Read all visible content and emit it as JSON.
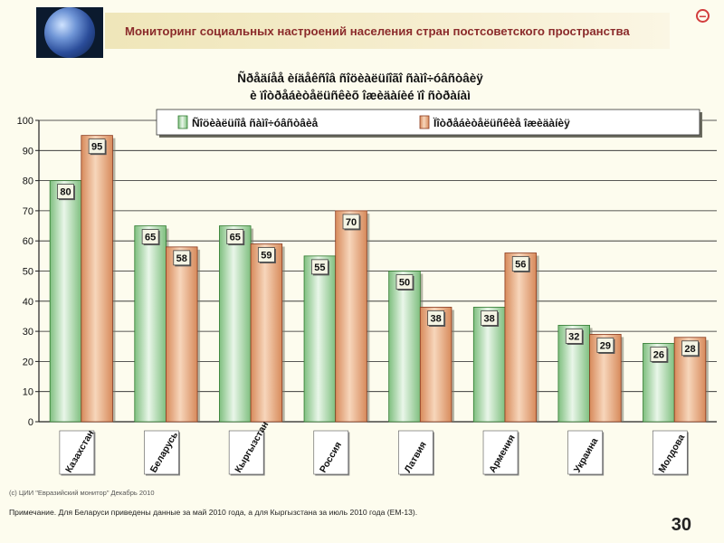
{
  "slide": {
    "title": "Мониторинг социальных настроений населения стран постсоветского пространства",
    "footnote": "Примечание. Для Беларуси приведены данные за май 2010 года, а для Кыргызстана за июль 2010 года (ЕМ-13).",
    "page_number": "30",
    "source_note": "(c) ЦИИ \"Евразийский монитор\" Декабрь 2010"
  },
  "icons": {
    "logo": "globe-icon",
    "corner": "minus-circle-icon"
  },
  "colors": {
    "series1_fill": "#c8e6c8",
    "series1_edge": "#2f7a2f",
    "series2_fill": "#f0b98e",
    "series2_edge": "#8b3a1f",
    "title": "#8b2b2b"
  },
  "chart_data": {
    "type": "bar",
    "title_lines": [
      "Ñðåäíåå èíäåêñîâ ñîöèàëüíîãî ñàìî÷óâñòâèÿ",
      "è ïîòðåáèòåëüñêèõ îæèäàíèé ïî ñòðàíàì"
    ],
    "categories": [
      "Казахстан",
      "Беларусь",
      "Кыргызстан",
      "Россия",
      "Латвия",
      "Армения",
      "Украина",
      "Молдова"
    ],
    "series": [
      {
        "name": "Ñîöèàëüíîå ñàìî÷óâñòâèå",
        "values": [
          80,
          65,
          65,
          55,
          50,
          38,
          32,
          26
        ],
        "color": "#c8e6c8"
      },
      {
        "name": "Ïîòðåáèòåëüñêèå îæèäàíèÿ",
        "values": [
          95,
          58,
          59,
          70,
          38,
          56,
          29,
          28
        ],
        "color": "#f0b98e"
      }
    ],
    "ylim": [
      0,
      100
    ],
    "yticks": [
      0,
      10,
      20,
      30,
      40,
      50,
      60,
      70,
      80,
      90,
      100
    ],
    "grid": true,
    "legend_position": "top"
  }
}
